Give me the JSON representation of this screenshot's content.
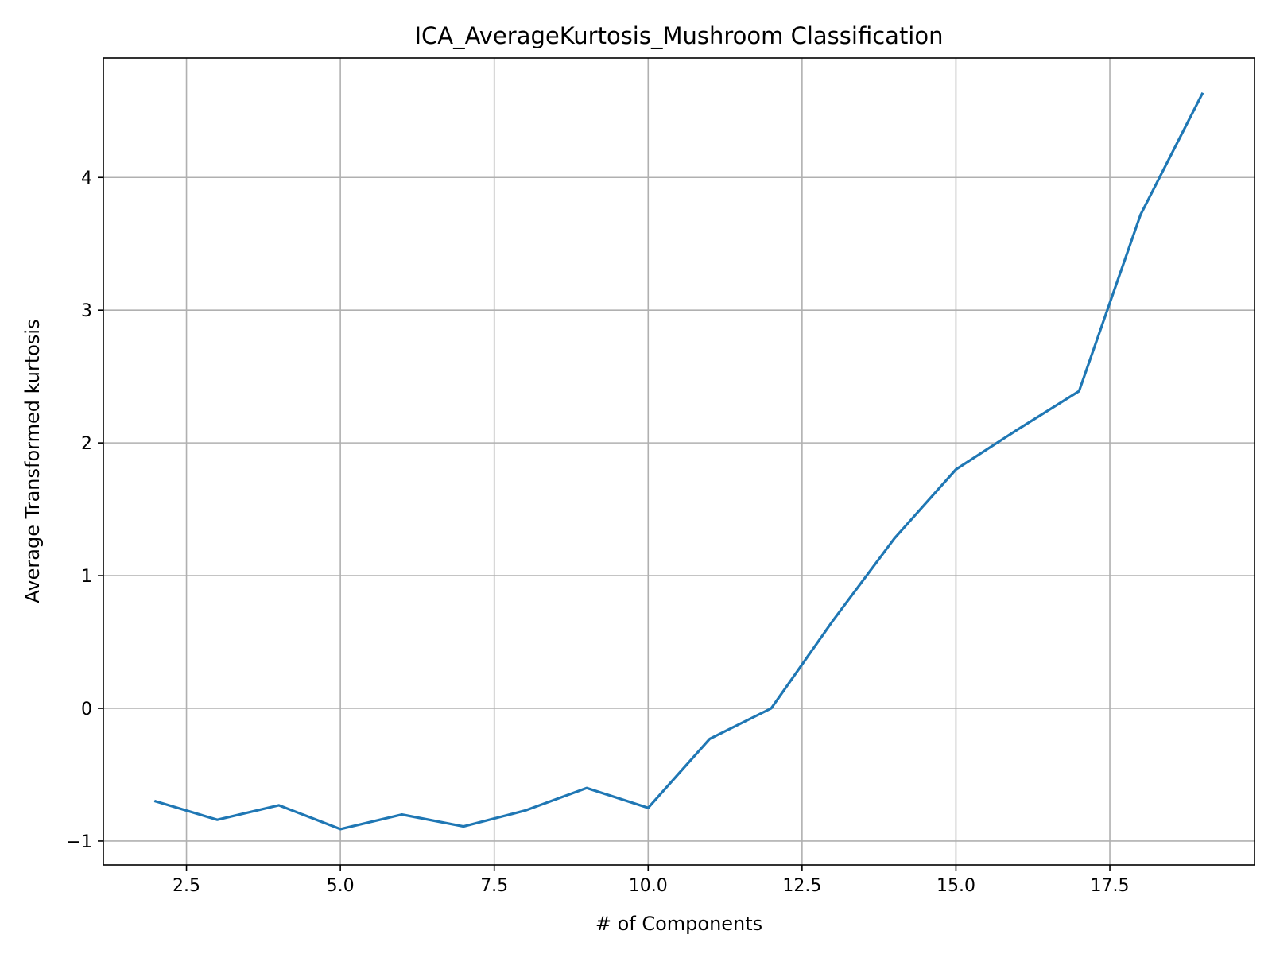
{
  "chart_data": {
    "type": "line",
    "title": "ICA_AverageKurtosis_Mushroom Classification",
    "xlabel": "# of Components",
    "ylabel": "Average Transformed kurtosis",
    "xlim": [
      1.15,
      19.85
    ],
    "ylim": [
      -1.18,
      4.9
    ],
    "x_ticks": [
      2.5,
      5.0,
      7.5,
      10.0,
      12.5,
      15.0,
      17.5
    ],
    "x_tick_labels": [
      "2.5",
      "5.0",
      "7.5",
      "10.0",
      "12.5",
      "15.0",
      "17.5"
    ],
    "y_ticks": [
      -1,
      0,
      1,
      2,
      3,
      4
    ],
    "y_tick_labels": [
      "−1",
      "0",
      "1",
      "2",
      "3",
      "4"
    ],
    "grid": true,
    "series": [
      {
        "color": "#1f77b4",
        "x": [
          2,
          3,
          4,
          5,
          6,
          7,
          8,
          9,
          10,
          11,
          12,
          13,
          14,
          15,
          16,
          17,
          18,
          19
        ],
        "y": [
          -0.7,
          -0.84,
          -0.73,
          -0.91,
          -0.8,
          -0.89,
          -0.77,
          -0.6,
          -0.75,
          -0.23,
          0.0,
          0.66,
          1.28,
          1.8,
          2.1,
          2.39,
          3.72,
          4.63
        ]
      }
    ]
  }
}
